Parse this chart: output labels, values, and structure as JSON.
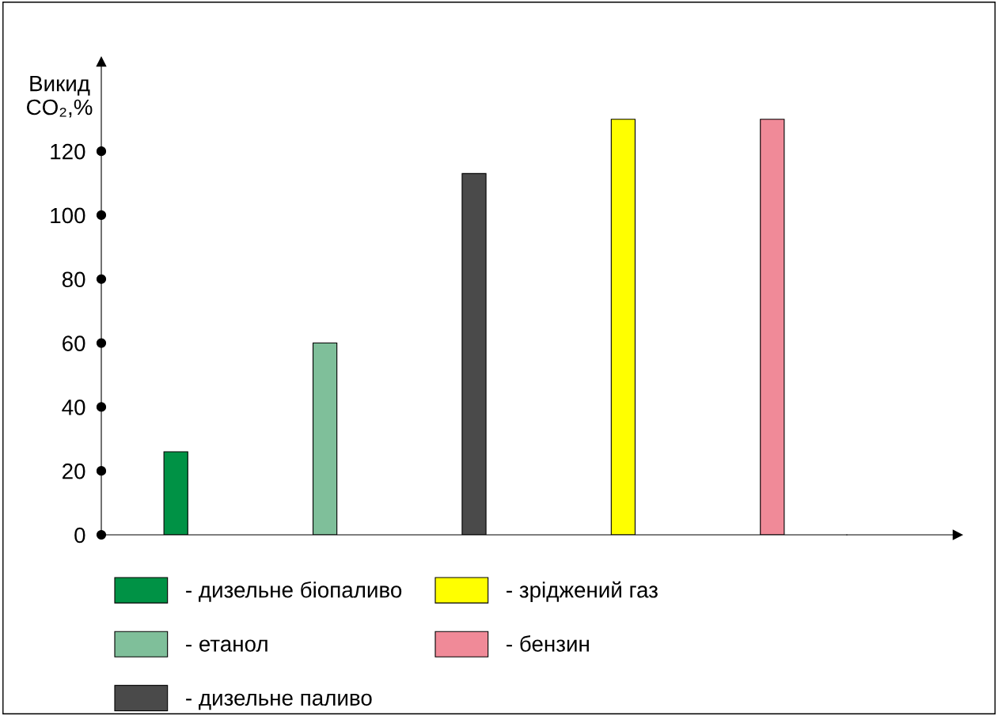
{
  "chart_data": {
    "type": "bar",
    "ylabel": "Викид\nCO₂,%",
    "categories": [
      null,
      null,
      null,
      null,
      null
    ],
    "series": [
      {
        "name": "- дизельне біопаливо",
        "color": "#009245",
        "values": [
          26,
          null,
          null,
          null,
          null
        ]
      },
      {
        "name": "- етанол",
        "color": "#7fbf9a",
        "values": [
          null,
          60,
          null,
          null,
          null
        ]
      },
      {
        "name": "- дизельне паливо",
        "color": "#4a4a4a",
        "values": [
          null,
          null,
          113,
          null,
          null
        ]
      },
      {
        "name": "- зріджений газ",
        "color": "#ffff00",
        "values": [
          null,
          null,
          null,
          130,
          null
        ]
      },
      {
        "name": "- бензин",
        "color": "#f08a98",
        "values": [
          null,
          null,
          null,
          null,
          130
        ]
      }
    ],
    "ylim": [
      0,
      148
    ],
    "yticks": [
      0,
      20,
      40,
      60,
      80,
      100,
      120
    ],
    "grid": false,
    "legend": "bottom"
  }
}
